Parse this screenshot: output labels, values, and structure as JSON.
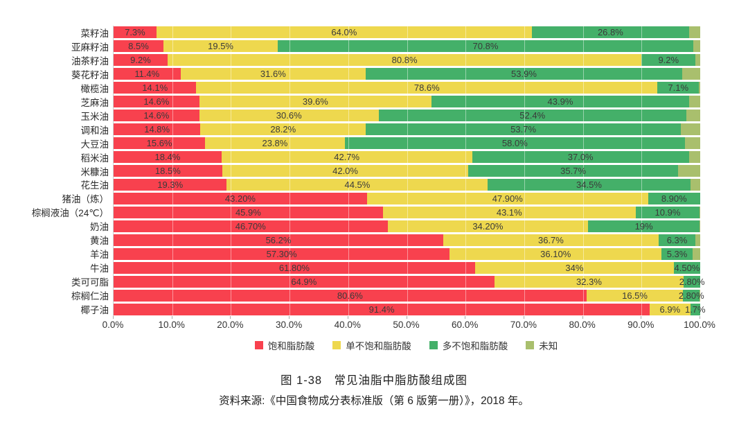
{
  "figure": {
    "caption": "图 1-38　常见油脂中脂肪酸组成图",
    "source": "资料来源:《中国食物成分表标准版（第 6 版第一册）》，2018 年。"
  },
  "chart_data": {
    "type": "bar",
    "orientation": "horizontal",
    "stacked": true,
    "unit": "%",
    "xlim": [
      0,
      100
    ],
    "x_tick_labels": [
      "0.0%",
      "10.0%",
      "20.0%",
      "30.0%",
      "40.0%",
      "50.0%",
      "60.0%",
      "70.0%",
      "80.0%",
      "90.0%",
      "100.0%"
    ],
    "grid": "vertical gridlines every 10%",
    "legend_position": "bottom",
    "legend": [
      {
        "name": "饱和脂肪酸",
        "color": "#f8414e"
      },
      {
        "name": "单不饱和脂肪酸",
        "color": "#eed84e"
      },
      {
        "name": "多不饱和脂肪酸",
        "color": "#44b069"
      },
      {
        "name": "未知",
        "color": "#a9bf6d"
      }
    ],
    "unknown_segment_unlabeled_estimated_as_remainder": true,
    "rows": [
      {
        "category": "菜籽油",
        "values": [
          7.3,
          64.0,
          26.8,
          1.9
        ],
        "labels": [
          "7.3%",
          "64.0%",
          "26.8%",
          ""
        ]
      },
      {
        "category": "亚麻籽油",
        "values": [
          8.5,
          19.5,
          70.8,
          1.2
        ],
        "labels": [
          "8.5%",
          "19.5%",
          "70.8%",
          ""
        ]
      },
      {
        "category": "油茶籽油",
        "values": [
          9.2,
          80.8,
          9.2,
          0.8
        ],
        "labels": [
          "9.2%",
          "80.8%",
          "9.2%",
          ""
        ]
      },
      {
        "category": "葵花籽油",
        "values": [
          11.4,
          31.6,
          53.9,
          3.1
        ],
        "labels": [
          "11.4%",
          "31.6%",
          "53.9%",
          ""
        ]
      },
      {
        "category": "橄榄油",
        "values": [
          14.1,
          78.6,
          7.1,
          0.2
        ],
        "labels": [
          "14.1%",
          "78.6%",
          "7.1%",
          ""
        ]
      },
      {
        "category": "芝麻油",
        "values": [
          14.6,
          39.6,
          43.9,
          1.9
        ],
        "labels": [
          "14.6%",
          "39.6%",
          "43.9%",
          ""
        ]
      },
      {
        "category": "玉米油",
        "values": [
          14.6,
          30.6,
          52.4,
          2.4
        ],
        "labels": [
          "14.6%",
          "30.6%",
          "52.4%",
          ""
        ]
      },
      {
        "category": "调和油",
        "values": [
          14.8,
          28.2,
          53.7,
          3.3
        ],
        "labels": [
          "14.8%",
          "28.2%",
          "53.7%",
          ""
        ]
      },
      {
        "category": "大豆油",
        "values": [
          15.6,
          23.8,
          58.0,
          2.6
        ],
        "labels": [
          "15.6%",
          "23.8%",
          "58.0%",
          ""
        ]
      },
      {
        "category": "稻米油",
        "values": [
          18.4,
          42.7,
          37.0,
          1.9
        ],
        "labels": [
          "18.4%",
          "42.7%",
          "37.0%",
          ""
        ]
      },
      {
        "category": "米糠油",
        "values": [
          18.5,
          42.0,
          35.7,
          3.8
        ],
        "labels": [
          "18.5%",
          "42.0%",
          "35.7%",
          ""
        ]
      },
      {
        "category": "花生油",
        "values": [
          19.3,
          44.5,
          34.5,
          1.7
        ],
        "labels": [
          "19.3%",
          "44.5%",
          "34.5%",
          ""
        ]
      },
      {
        "category": "猪油（炼）",
        "values": [
          43.2,
          47.9,
          8.9,
          0.0
        ],
        "labels": [
          "43.20%",
          "47.90%",
          "8.90%",
          ""
        ]
      },
      {
        "category": "棕榈液油（24℃）",
        "values": [
          45.9,
          43.1,
          10.9,
          0.1
        ],
        "labels": [
          "45.9%",
          "43.1%",
          "10.9%",
          ""
        ]
      },
      {
        "category": "奶油",
        "values": [
          46.7,
          34.2,
          19.0,
          0.1
        ],
        "labels": [
          "46.70%",
          "34.20%",
          "19%",
          ""
        ]
      },
      {
        "category": "黄油",
        "values": [
          56.2,
          36.7,
          6.3,
          0.8
        ],
        "labels": [
          "56.2%",
          "36.7%",
          "6.3%",
          ""
        ]
      },
      {
        "category": "羊油",
        "values": [
          57.3,
          36.1,
          5.3,
          1.3
        ],
        "labels": [
          "57.30%",
          "36.10%",
          "5.3%",
          ""
        ]
      },
      {
        "category": "牛油",
        "values": [
          61.8,
          34.0,
          4.5,
          0.0
        ],
        "labels": [
          "61.80%",
          "34%",
          "4.50%",
          ""
        ]
      },
      {
        "category": "类可可脂",
        "values": [
          64.9,
          32.3,
          2.8,
          0.0
        ],
        "labels": [
          "64.9%",
          "32.3%",
          "2.80%",
          ""
        ]
      },
      {
        "category": "棕榈仁油",
        "values": [
          80.6,
          16.5,
          2.8,
          0.1
        ],
        "labels": [
          "80.6%",
          "16.5%",
          "2.80%",
          ""
        ]
      },
      {
        "category": "椰子油",
        "values": [
          91.4,
          6.9,
          1.7,
          0.0
        ],
        "labels": [
          "91.4%",
          "6.9%",
          "1.7%",
          ""
        ]
      }
    ]
  }
}
